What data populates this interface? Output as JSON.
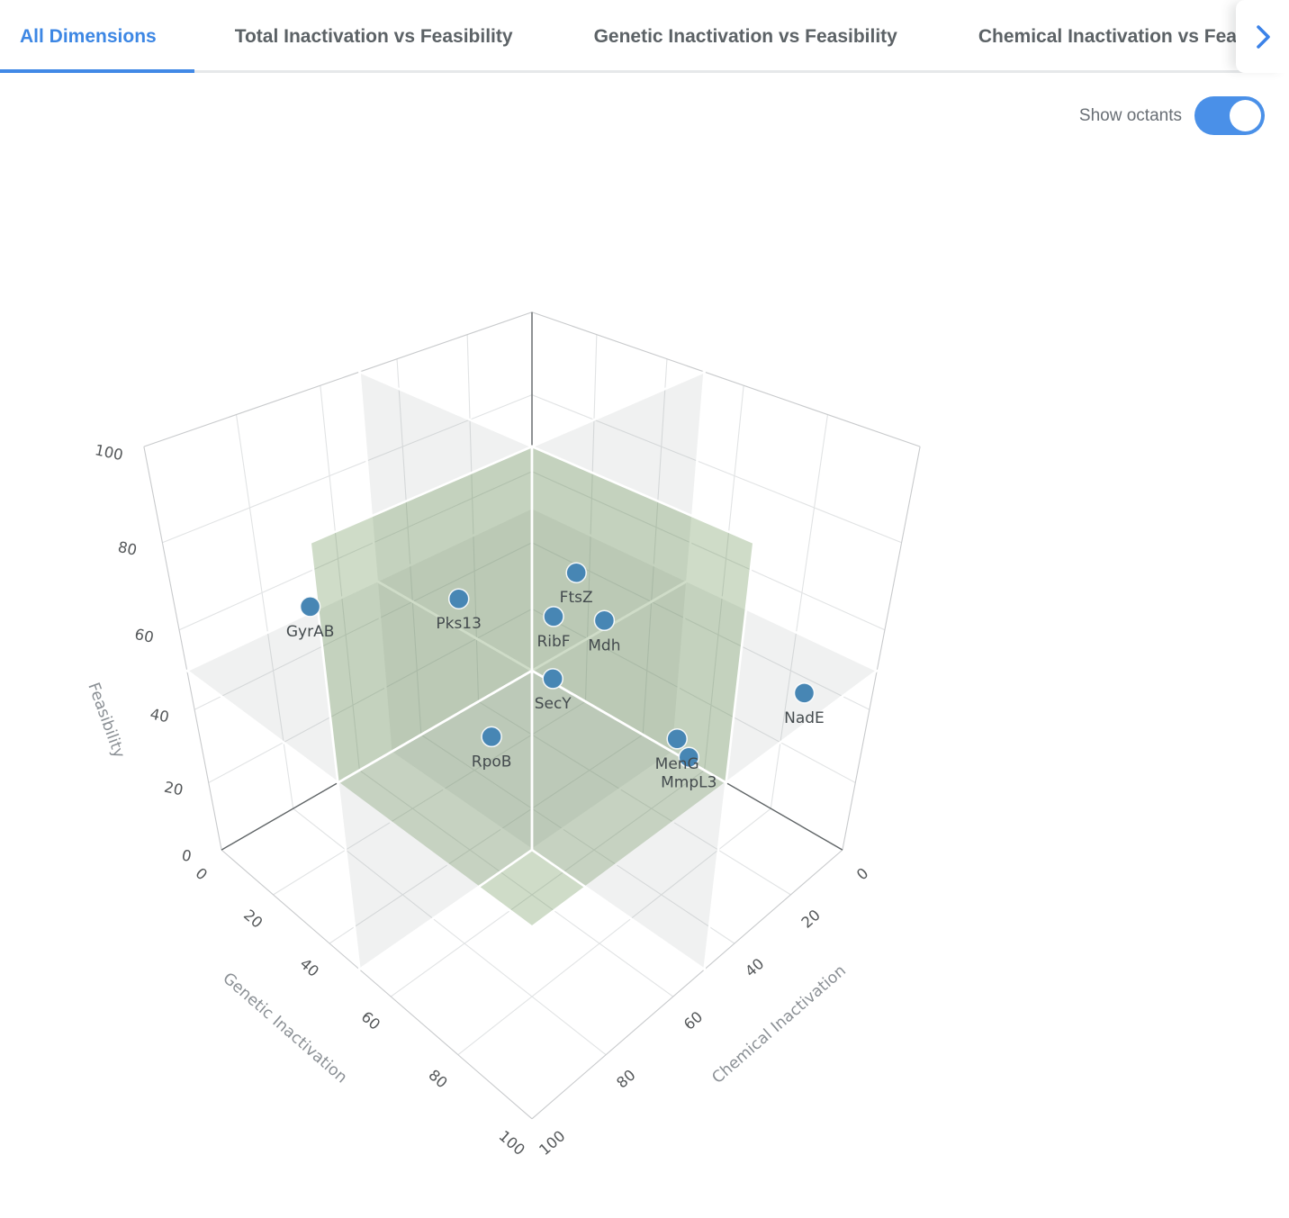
{
  "header": {
    "tabs": [
      {
        "label": "All Dimensions",
        "active": true
      },
      {
        "label": "Total Inactivation vs Feasibility",
        "active": false
      },
      {
        "label": "Genetic Inactivation vs Feasibility",
        "active": false
      },
      {
        "label": "Chemical Inactivation vs Feasibility",
        "active": false
      }
    ],
    "scroll_chevron_icon": "chevron-right"
  },
  "controls": {
    "show_octants_label": "Show octants",
    "toggle_on": true
  },
  "chart_data": {
    "type": "scatter3d",
    "axes": {
      "x": {
        "title": "Genetic Inactivation",
        "range": [
          0,
          100
        ],
        "ticks": [
          0,
          20,
          40,
          60,
          80,
          100
        ]
      },
      "y": {
        "title": "Chemical Inactivation",
        "range": [
          0,
          100
        ],
        "ticks": [
          0,
          20,
          40,
          60,
          80,
          100
        ]
      },
      "z": {
        "title": "Feasibility",
        "range": [
          0,
          100
        ],
        "ticks": [
          0,
          20,
          40,
          60,
          80,
          100
        ]
      }
    },
    "octants": {
      "shown": true,
      "threshold": 50,
      "plane_color_gray": "#f0f0f1",
      "highlight_color_green": "#cfdcc9",
      "highlighted_octant": "genetic>50 & chemical>50 & feasibility>50"
    },
    "points": [
      {
        "label": "GyrAB",
        "genetic": 25,
        "chemical": 85,
        "feasibility": 70
      },
      {
        "label": "Pks13",
        "genetic": 43,
        "chemical": 63,
        "feasibility": 70
      },
      {
        "label": "FtsZ",
        "genetic": 58,
        "chemical": 46,
        "feasibility": 75
      },
      {
        "label": "RibF",
        "genetic": 55,
        "chemical": 49,
        "feasibility": 65
      },
      {
        "label": "Mdh",
        "genetic": 63,
        "chemical": 43,
        "feasibility": 65
      },
      {
        "label": "SecY",
        "genetic": 55,
        "chemical": 49,
        "feasibility": 50
      },
      {
        "label": "RpoB",
        "genetic": 46,
        "chemical": 58,
        "feasibility": 35
      },
      {
        "label": "MenG",
        "genetic": 74,
        "chemical": 31,
        "feasibility": 35
      },
      {
        "label": "MmpL3",
        "genetic": 76,
        "chemical": 29,
        "feasibility": 30
      },
      {
        "label": "NadE",
        "genetic": 94,
        "chemical": 17,
        "feasibility": 50
      }
    ],
    "marker_color": "#4786b4",
    "accent_color": "#4189e6"
  }
}
